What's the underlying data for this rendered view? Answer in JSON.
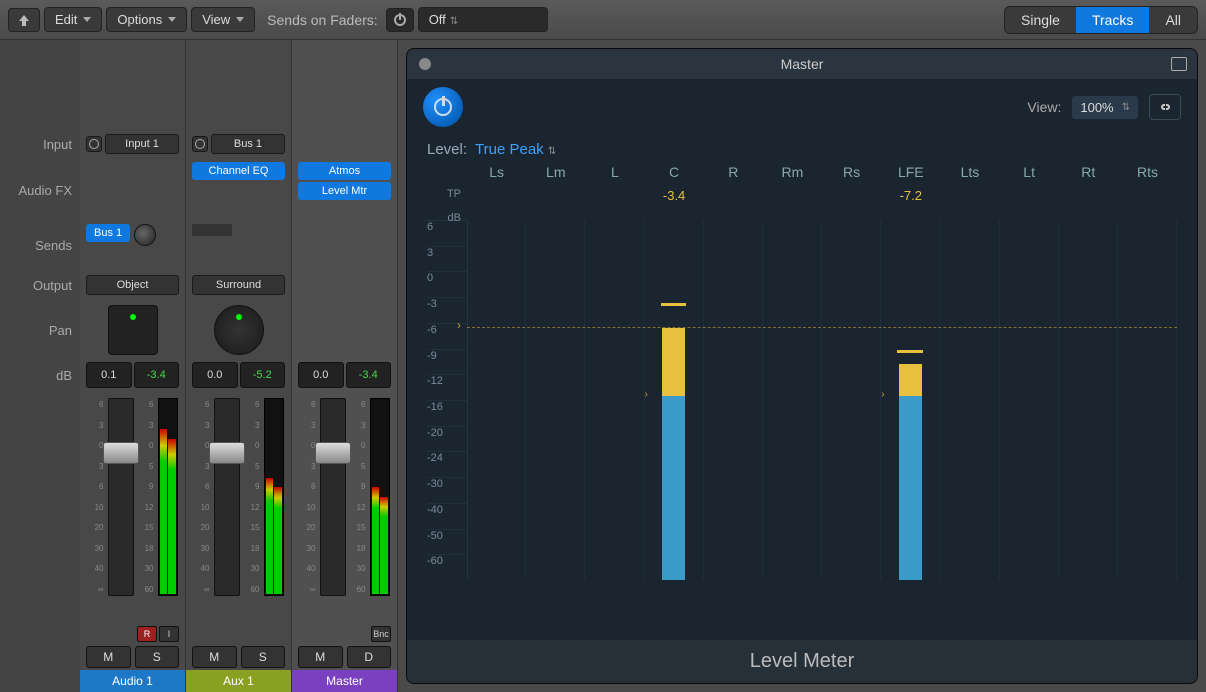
{
  "toolbar": {
    "edit": "Edit",
    "options": "Options",
    "view": "View",
    "sends_label": "Sends on Faders:",
    "sends_value": "Off",
    "seg": {
      "single": "Single",
      "tracks": "Tracks",
      "all": "All",
      "active": "tracks"
    }
  },
  "row_labels": {
    "input": "Input",
    "audiofx": "Audio FX",
    "sends": "Sends",
    "output": "Output",
    "pan": "Pan",
    "db": "dB"
  },
  "channels": [
    {
      "name": "Audio 1",
      "color": "#1e78c8",
      "input": "Input 1",
      "plugins": [],
      "sends": [
        "Bus 1"
      ],
      "output": "Object",
      "panner": "grid",
      "db_left": "0.1",
      "db_right": "-3.4",
      "fader_pos_pct": 22,
      "meter_fill_pct": 85,
      "ri": [
        "R",
        "I"
      ],
      "ms": [
        "M",
        "S"
      ]
    },
    {
      "name": "Aux 1",
      "color": "#8aa020",
      "input": "Bus 1",
      "plugins": [
        "Channel EQ"
      ],
      "sends": [],
      "output": "Surround",
      "panner": "surround",
      "db_left": "0.0",
      "db_right": "-5.2",
      "fader_pos_pct": 22,
      "meter_fill_pct": 60,
      "ri": [],
      "ms": [
        "M",
        "S"
      ]
    },
    {
      "name": "Master",
      "color": "#7a40c0",
      "is_master": true,
      "input": null,
      "plugins": [
        "Atmos",
        "Level Mtr"
      ],
      "sends": [],
      "output": null,
      "panner": null,
      "db_left": "0.0",
      "db_right": "-3.4",
      "fader_pos_pct": 22,
      "meter_fill_pct": 55,
      "ri": [
        "Bnc"
      ],
      "ms": [
        "M",
        "D"
      ]
    }
  ],
  "fader_scale": [
    "6",
    "3",
    "0",
    "3",
    "6",
    "10",
    "20",
    "30",
    "40",
    "∞"
  ],
  "meter_scale": [
    "6",
    "3",
    "0",
    "5",
    "9",
    "12",
    "15",
    "18",
    "30",
    "60"
  ],
  "plugin": {
    "title": "Master",
    "view_label": "View:",
    "zoom": "100%",
    "level_label": "Level:",
    "level_mode": "True Peak",
    "footer": "Level Meter",
    "channels": [
      "Ls",
      "Lm",
      "L",
      "C",
      "R",
      "Rm",
      "Rs",
      "LFE",
      "Lts",
      "Lt",
      "Rt",
      "Rts"
    ],
    "tp_label": "TP",
    "db_label": "dB",
    "db_ticks": [
      "6",
      "3",
      "0",
      "-3",
      "-6",
      "-9",
      "-12",
      "-16",
      "-20",
      "-24",
      "-30",
      "-40",
      "-50",
      "-60"
    ],
    "tp_values": {
      "C": "-3.4",
      "LFE": "-7.2"
    },
    "bars": {
      "C": {
        "blue_bottom_pct": 0,
        "blue_top_pct": 51,
        "yellow_bottom_pct": 51,
        "yellow_top_pct": 70,
        "peak_pct": 76
      },
      "LFE": {
        "blue_bottom_pct": 0,
        "blue_top_pct": 51,
        "yellow_bottom_pct": 51,
        "yellow_top_pct": 60,
        "peak_pct": 63
      }
    },
    "ref_line_pct": 70,
    "marker_pct": 51,
    "colors": {
      "bar_blue": "#3a9ac8",
      "bar_yellow": "#e8c040",
      "bg": "#1a2530"
    }
  }
}
